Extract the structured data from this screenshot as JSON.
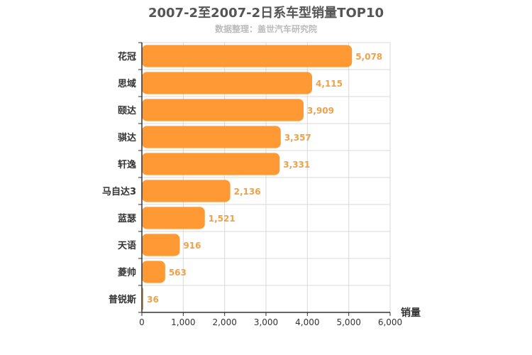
{
  "chart_data": {
    "type": "bar",
    "orientation": "horizontal",
    "title": "2007-2至2007-2日系车型销量TOP10",
    "subtitle": "数据整理：盖世汽车研究院",
    "xlabel": "销量",
    "categories": [
      "花冠",
      "思域",
      "颐达",
      "骐达",
      "轩逸",
      "马自达3",
      "蓝瑟",
      "天语",
      "菱帅",
      "普锐斯"
    ],
    "values": [
      5078,
      4115,
      3909,
      3357,
      3331,
      2136,
      1521,
      916,
      563,
      36
    ],
    "value_labels": [
      "5,078",
      "4,115",
      "3,909",
      "3,357",
      "3,331",
      "2,136",
      "1,521",
      "916",
      "563",
      "36"
    ],
    "xlim": [
      0,
      6000
    ],
    "xticks": [
      0,
      1000,
      2000,
      3000,
      4000,
      5000,
      6000
    ],
    "xtick_labels": [
      "0",
      "1,000",
      "2,000",
      "3,000",
      "4,000",
      "5,000",
      "6,000"
    ],
    "grid": true,
    "bar_color": "#ff9933"
  }
}
